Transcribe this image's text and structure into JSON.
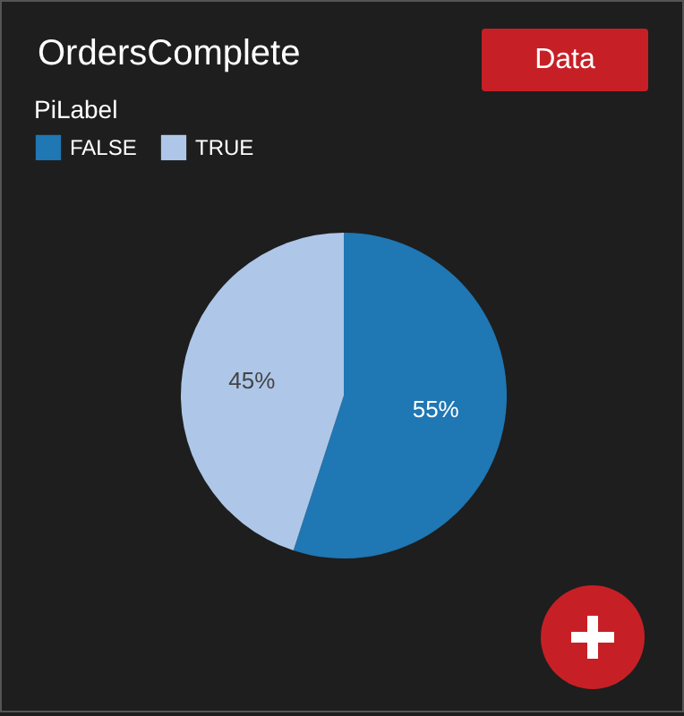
{
  "chart_data": {
    "type": "pie",
    "title": "OrdersComplete",
    "legend_title": "PiLabel",
    "categories": [
      "FALSE",
      "TRUE"
    ],
    "values": [
      55,
      45
    ],
    "colors": [
      "#1f77b4",
      "#aec7e8"
    ],
    "value_labels": [
      "55%",
      "45%"
    ],
    "legend": "top left",
    "annotations": [
      "Data"
    ]
  }
}
